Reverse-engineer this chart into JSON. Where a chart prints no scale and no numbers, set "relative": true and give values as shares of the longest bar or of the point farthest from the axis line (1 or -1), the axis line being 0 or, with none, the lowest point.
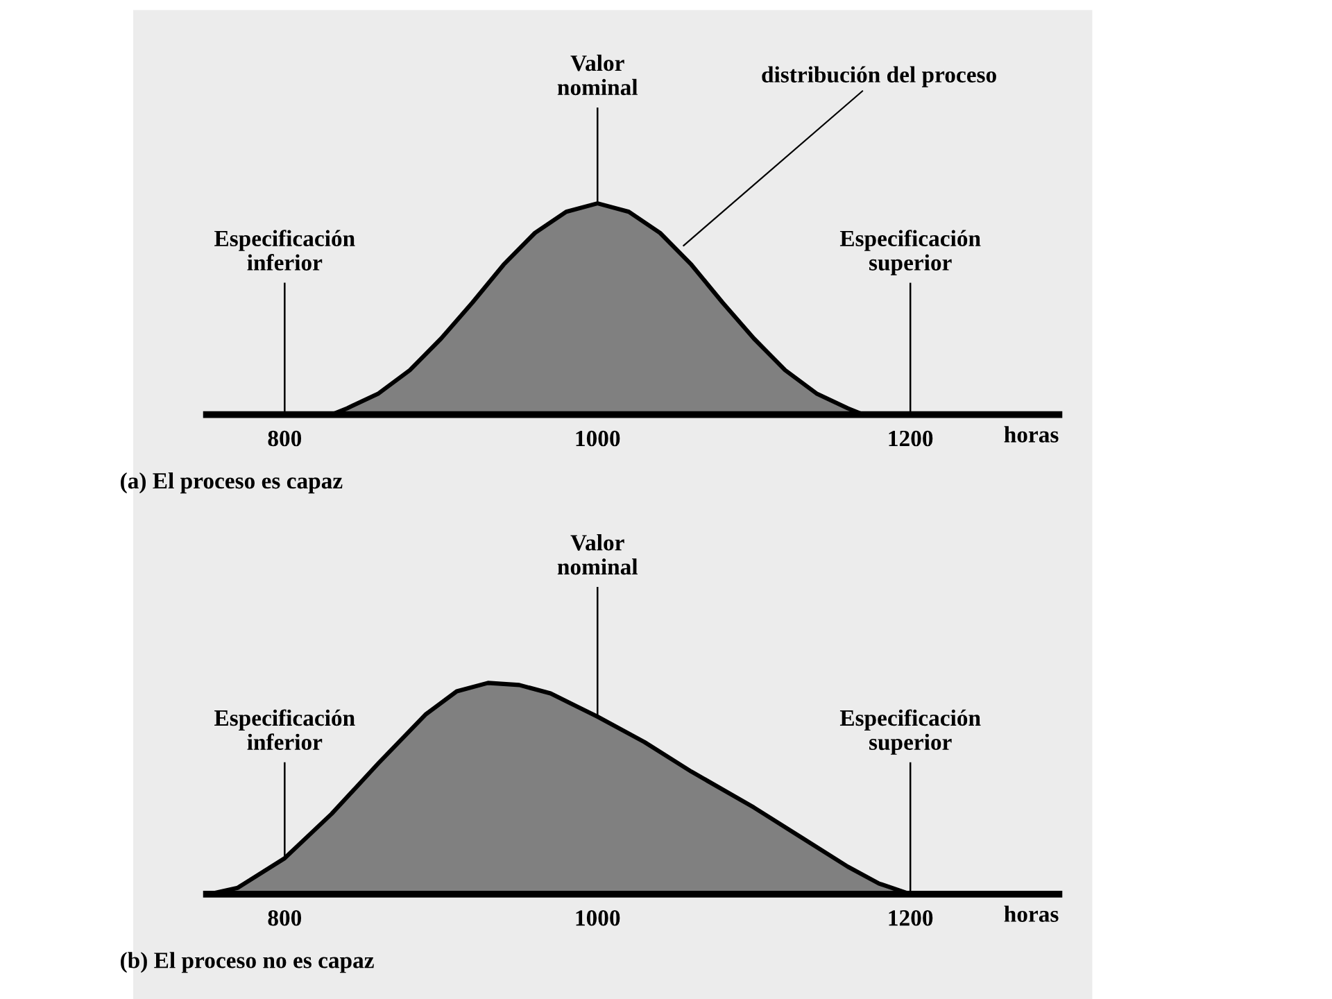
{
  "chart_data": [
    {
      "type": "area",
      "relative": true,
      "xlabel": "horas",
      "xlim": [
        750,
        1295
      ],
      "xticks": [
        800,
        1000,
        1200
      ],
      "grid": false,
      "legend": false,
      "x": [
        830,
        840,
        860,
        880,
        900,
        920,
        940,
        960,
        980,
        1000,
        1020,
        1040,
        1060,
        1080,
        1100,
        1120,
        1140,
        1160,
        1170
      ],
      "series": [
        {
          "color": "#808080",
          "values": [
            0,
            0.03,
            0.1,
            0.21,
            0.36,
            0.53,
            0.71,
            0.86,
            0.96,
            1,
            0.96,
            0.86,
            0.71,
            0.53,
            0.36,
            0.21,
            0.1,
            0.03,
            0
          ]
        }
      ],
      "ref_lines": [
        {
          "axis": "x",
          "value": 800,
          "label": "Especificación\ninferior"
        },
        {
          "axis": "x",
          "value": 1000,
          "label": "Valor\nnominal"
        },
        {
          "axis": "x",
          "value": 1200,
          "label": "Especificación\nsuperior"
        }
      ],
      "annotations": [
        {
          "text": "distribución del proceso",
          "x": 1055,
          "y": 0.8
        },
        "(a) El proceso es capaz"
      ]
    },
    {
      "type": "area",
      "relative": true,
      "xlabel": "horas",
      "xlim": [
        750,
        1295
      ],
      "xticks": [
        800,
        1000,
        1200
      ],
      "grid": false,
      "legend": false,
      "x": [
        752,
        770,
        800,
        830,
        860,
        890,
        910,
        930,
        950,
        970,
        1000,
        1030,
        1060,
        1100,
        1130,
        1160,
        1180,
        1200
      ],
      "series": [
        {
          "color": "#808080",
          "values": [
            0,
            0.03,
            0.17,
            0.38,
            0.62,
            0.85,
            0.96,
            1,
            0.99,
            0.95,
            0.84,
            0.72,
            0.58,
            0.41,
            0.27,
            0.13,
            0.05,
            0
          ]
        }
      ],
      "ref_lines": [
        {
          "axis": "x",
          "value": 800,
          "label": "Especificación\ninferior"
        },
        {
          "axis": "x",
          "value": 1000,
          "label": "Valor\nnominal"
        },
        {
          "axis": "x",
          "value": 1200,
          "label": "Especificación\nsuperior"
        }
      ],
      "annotations": [
        "(b) El proceso no es capaz"
      ]
    }
  ]
}
